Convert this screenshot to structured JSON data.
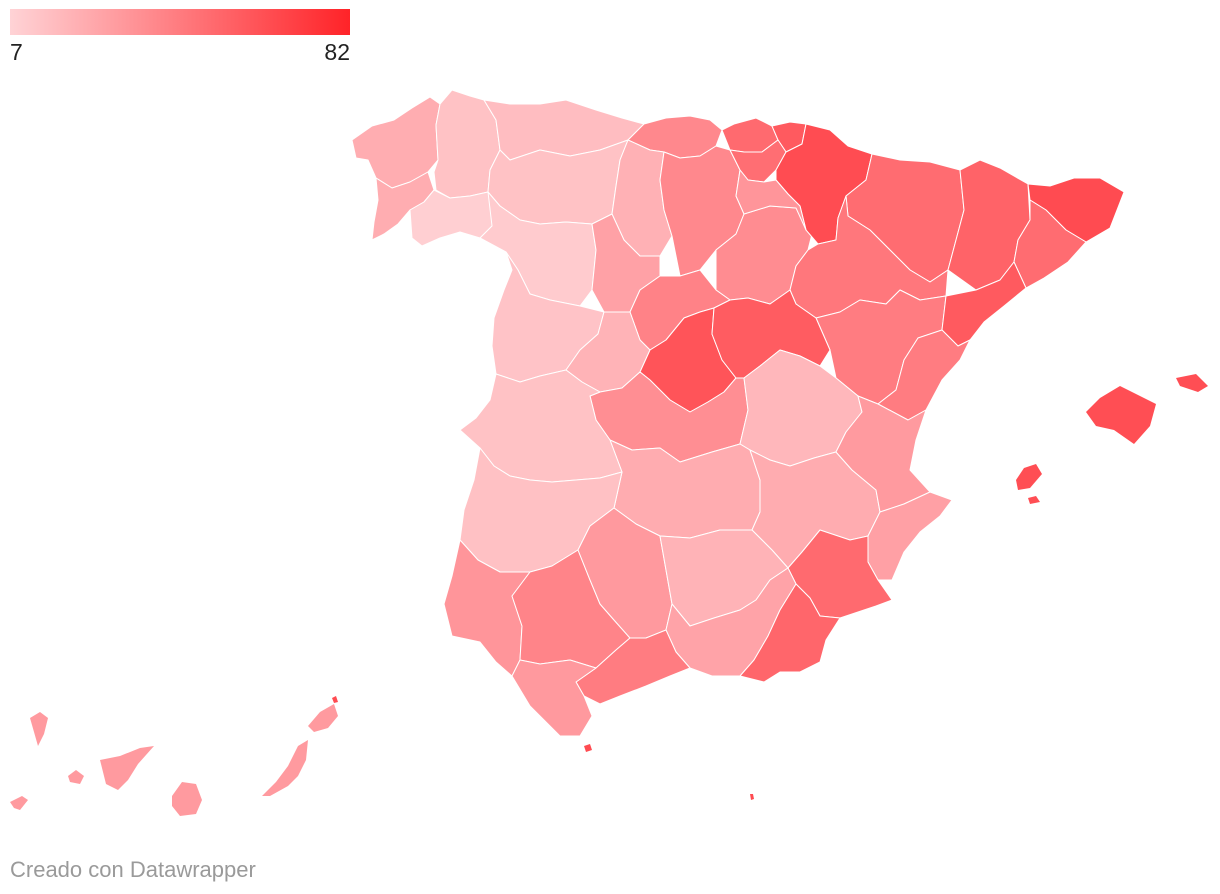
{
  "legend": {
    "min_label": "7",
    "max_label": "82",
    "min_value": 7,
    "max_value": 82,
    "color_low": "#ffd3d6",
    "color_high": "#ff2328"
  },
  "credit": "Creado con Datawrapper",
  "colors": {
    "stroke": "#ffffff",
    "background": "#ffffff",
    "credit_text": "#9a9a9a"
  }
}
